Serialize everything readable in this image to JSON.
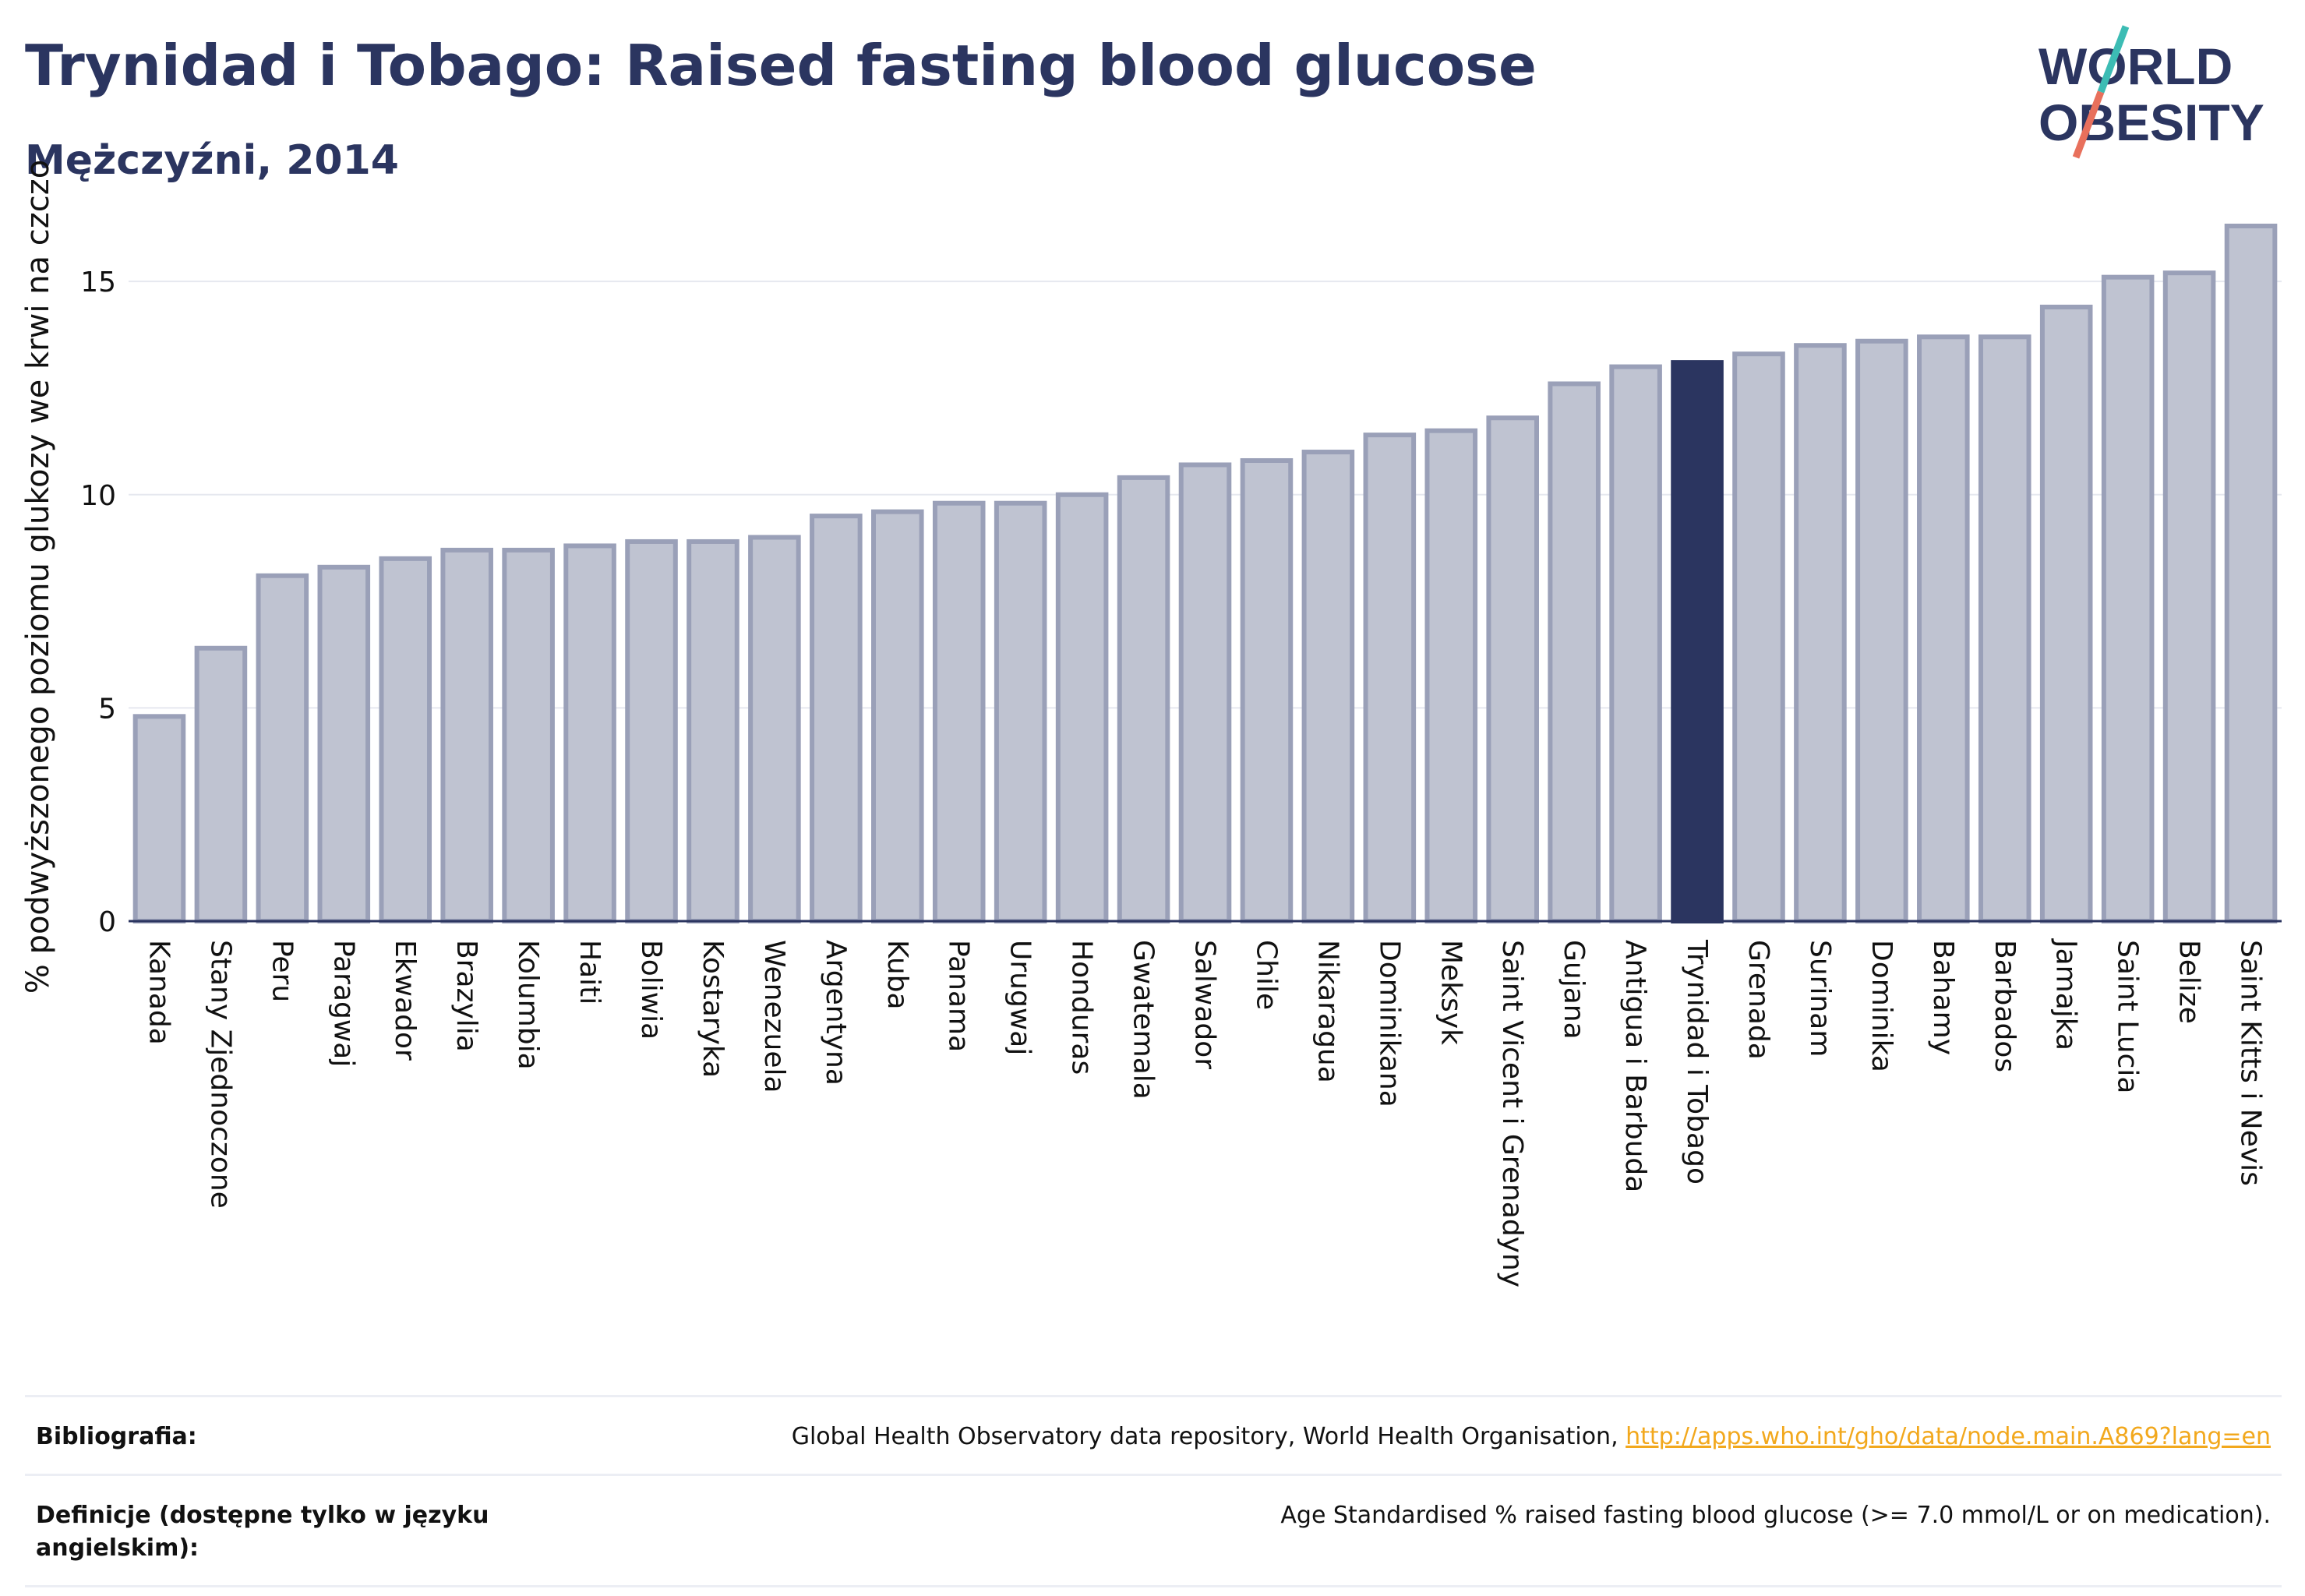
{
  "header": {
    "title": "Trynidad i Tobago: Raised fasting blood glucose",
    "subtitle": "Mężczyźni, 2014"
  },
  "logo": {
    "line1": "WORLD",
    "line2": "OBESITY"
  },
  "chart_data": {
    "type": "bar",
    "categories": [
      "Kanada",
      "Stany Zjednoczone",
      "Peru",
      "Paragwaj",
      "Ekwador",
      "Brazylia",
      "Kolumbia",
      "Haiti",
      "Boliwia",
      "Kostaryka",
      "Wenezuela",
      "Argentyna",
      "Kuba",
      "Panama",
      "Urugwaj",
      "Honduras",
      "Gwatemala",
      "Salwador",
      "Chile",
      "Nikaragua",
      "Dominikana",
      "Meksyk",
      "Saint Vicent i Grenadyny",
      "Gujana",
      "Antigua i Barbuda",
      "Trynidad i Tobago",
      "Grenada",
      "Surinam",
      "Dominika",
      "Bahamy",
      "Barbados",
      "Jamajka",
      "Saint Lucia",
      "Belize",
      "Saint Kitts i Nevis"
    ],
    "values": [
      4.8,
      6.4,
      8.1,
      8.3,
      8.5,
      8.7,
      8.7,
      8.8,
      8.9,
      8.9,
      9.0,
      9.5,
      9.6,
      9.8,
      9.8,
      10.0,
      10.4,
      10.7,
      10.8,
      11.0,
      11.4,
      11.5,
      11.8,
      12.6,
      13.0,
      13.1,
      13.3,
      13.5,
      13.6,
      13.7,
      13.7,
      14.4,
      15.1,
      15.2,
      16.3
    ],
    "highlight": "Trynidad i Tobago",
    "ylabel": "% podwyższonego poziomu glukozy we krwi na czczo",
    "xlabel": "",
    "yticks": [
      0,
      5,
      10,
      15
    ],
    "ylim": [
      0,
      16.3
    ],
    "grid": true,
    "colors": {
      "bar": "#bfc3d1",
      "bar_border": "#9aa0b8",
      "highlight": "#2b3560"
    }
  },
  "footer": {
    "rows": [
      {
        "key": "Bibliografia:",
        "text": "Global Health Observatory data repository, World Health Organisation, ",
        "link": "http://apps.who.int/gho/data/node.main.A869?lang=en"
      },
      {
        "key": "Definicje (dostępne tylko w języku angielskim):",
        "text": "Age Standardised % raised fasting blood glucose (>= 7.0 mmol/L or on medication).",
        "link": ""
      }
    ]
  }
}
